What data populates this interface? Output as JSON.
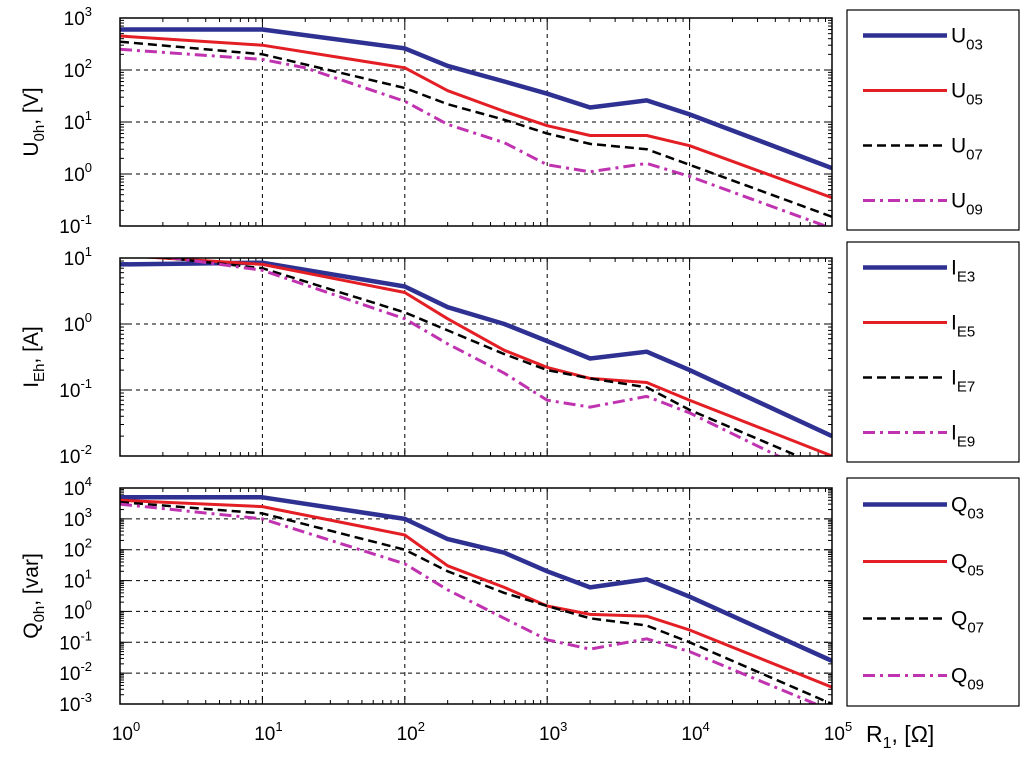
{
  "chart_data": [
    {
      "type": "line",
      "x_scale": "log",
      "y_scale": "log",
      "xlim": [
        1,
        100000
      ],
      "ylim": [
        0.1,
        1000
      ],
      "ylabel_main": "U",
      "ylabel_sub": "0h",
      "ylabel_unit": ", [V]",
      "yticks": [
        {
          "b": "10",
          "e": "-1"
        },
        {
          "b": "10",
          "e": "0"
        },
        {
          "b": "10",
          "e": "1"
        },
        {
          "b": "10",
          "e": "2"
        },
        {
          "b": "10",
          "e": "3"
        }
      ],
      "series": [
        {
          "main": "U",
          "sub": "03",
          "color": "#2e3192",
          "style": "solid",
          "width": 4.5,
          "x": [
            1,
            10,
            100,
            200,
            500,
            1000,
            2000,
            5000,
            10000,
            100000
          ],
          "y": [
            600,
            600,
            260,
            120,
            60,
            35,
            19,
            26,
            14,
            1.3
          ]
        },
        {
          "main": "U",
          "sub": "05",
          "color": "#e31e24",
          "style": "solid",
          "width": 3,
          "x": [
            1,
            10,
            100,
            200,
            500,
            1000,
            2000,
            5000,
            10000,
            100000
          ],
          "y": [
            450,
            300,
            110,
            40,
            16,
            8.5,
            5.5,
            5.5,
            3.5,
            0.35
          ]
        },
        {
          "main": "U",
          "sub": "07",
          "color": "#000000",
          "style": "dash",
          "width": 2.5,
          "x": [
            1,
            10,
            100,
            200,
            500,
            1000,
            2000,
            5000,
            10000,
            100000
          ],
          "y": [
            350,
            200,
            45,
            22,
            11,
            6,
            3.8,
            3,
            1.5,
            0.15
          ]
        },
        {
          "main": "U",
          "sub": "09",
          "color": "#c033b0",
          "style": "dashdot",
          "width": 3,
          "x": [
            1,
            10,
            20,
            100,
            200,
            500,
            1000,
            2000,
            5000,
            10000,
            100000
          ],
          "y": [
            250,
            160,
            110,
            25,
            9,
            4,
            1.5,
            1.1,
            1.6,
            0.9,
            0.09
          ]
        }
      ]
    },
    {
      "type": "line",
      "x_scale": "log",
      "y_scale": "log",
      "xlim": [
        1,
        100000
      ],
      "ylim": [
        0.01,
        10
      ],
      "ylabel_main": "I",
      "ylabel_sub": "Eh",
      "ylabel_unit": ", [A]",
      "yticks": [
        {
          "b": "10",
          "e": "-2"
        },
        {
          "b": "10",
          "e": "-1"
        },
        {
          "b": "10",
          "e": "0"
        },
        {
          "b": "10",
          "e": "1"
        }
      ],
      "series": [
        {
          "main": "I",
          "sub": "E3",
          "color": "#2e3192",
          "style": "solid",
          "width": 4.5,
          "x": [
            1,
            10,
            100,
            200,
            500,
            1000,
            2000,
            5000,
            10000,
            100000
          ],
          "y": [
            8,
            8.5,
            3.7,
            1.8,
            1,
            0.55,
            0.3,
            0.38,
            0.2,
            0.02
          ]
        },
        {
          "main": "I",
          "sub": "E5",
          "color": "#e31e24",
          "style": "solid",
          "width": 3,
          "x": [
            1,
            10,
            100,
            200,
            500,
            1000,
            2000,
            5000,
            10000,
            100000
          ],
          "y": [
            11,
            8,
            3,
            1.2,
            0.4,
            0.22,
            0.15,
            0.13,
            0.07,
            0.01
          ]
        },
        {
          "main": "I",
          "sub": "E7",
          "color": "#000000",
          "style": "dash",
          "width": 2.5,
          "x": [
            1,
            10,
            100,
            200,
            500,
            1000,
            2000,
            5000,
            10000,
            100000
          ],
          "y": [
            12,
            7,
            1.5,
            0.8,
            0.35,
            0.2,
            0.15,
            0.11,
            0.05,
            0.006
          ]
        },
        {
          "main": "I",
          "sub": "E9",
          "color": "#c033b0",
          "style": "dashdot",
          "width": 3,
          "x": [
            1,
            10,
            100,
            200,
            500,
            1000,
            2000,
            5000,
            10000,
            100000
          ],
          "y": [
            13,
            6.5,
            1.2,
            0.5,
            0.18,
            0.07,
            0.055,
            0.08,
            0.045,
            0.004
          ]
        }
      ]
    },
    {
      "type": "line",
      "x_scale": "log",
      "y_scale": "log",
      "xlim": [
        1,
        100000
      ],
      "ylim": [
        0.001,
        10000
      ],
      "ylabel_main": "Q",
      "ylabel_sub": "0h",
      "ylabel_unit": ", [var]",
      "yticks": [
        {
          "b": "10",
          "e": "-3"
        },
        {
          "b": "10",
          "e": "-2"
        },
        {
          "b": "10",
          "e": "-1"
        },
        {
          "b": "10",
          "e": "0"
        },
        {
          "b": "10",
          "e": "1"
        },
        {
          "b": "10",
          "e": "2"
        },
        {
          "b": "10",
          "e": "3"
        },
        {
          "b": "10",
          "e": "4"
        }
      ],
      "xticks": [
        {
          "b": "10",
          "e": "0"
        },
        {
          "b": "10",
          "e": "1"
        },
        {
          "b": "10",
          "e": "2"
        },
        {
          "b": "10",
          "e": "3"
        },
        {
          "b": "10",
          "e": "4"
        },
        {
          "b": "10",
          "e": "5"
        }
      ],
      "xlabel_main": "R",
      "xlabel_sub": "1",
      "xlabel_unit": ", [Ω]",
      "series": [
        {
          "main": "Q",
          "sub": "03",
          "color": "#2e3192",
          "style": "solid",
          "width": 4.5,
          "x": [
            1,
            10,
            100,
            200,
            500,
            1000,
            2000,
            5000,
            10000,
            100000
          ],
          "y": [
            5000,
            5000,
            1000,
            220,
            80,
            20,
            6,
            11,
            3,
            0.025
          ]
        },
        {
          "main": "Q",
          "sub": "05",
          "color": "#e31e24",
          "style": "solid",
          "width": 3,
          "x": [
            1,
            10,
            100,
            200,
            500,
            1000,
            2000,
            5000,
            10000,
            100000
          ],
          "y": [
            4000,
            2500,
            300,
            30,
            6,
            1.5,
            0.8,
            0.7,
            0.25,
            0.0035
          ]
        },
        {
          "main": "Q",
          "sub": "07",
          "color": "#000000",
          "style": "dash",
          "width": 2.5,
          "x": [
            1,
            10,
            100,
            200,
            500,
            1000,
            2000,
            5000,
            10000,
            100000
          ],
          "y": [
            3500,
            1500,
            100,
            20,
            4,
            1.5,
            0.6,
            0.35,
            0.1,
            0.001
          ]
        },
        {
          "main": "Q",
          "sub": "09",
          "color": "#c033b0",
          "style": "dashdot",
          "width": 3,
          "x": [
            1,
            10,
            100,
            200,
            500,
            1000,
            2000,
            5000,
            10000,
            100000
          ],
          "y": [
            3000,
            1000,
            35,
            5,
            0.6,
            0.12,
            0.06,
            0.13,
            0.05,
            0.0006
          ]
        }
      ]
    }
  ]
}
